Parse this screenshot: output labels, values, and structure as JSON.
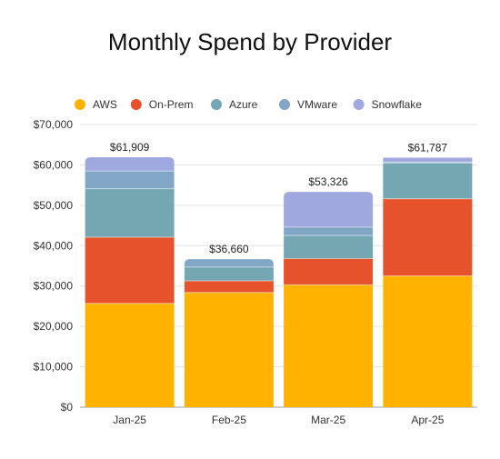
{
  "chart_data": {
    "type": "bar",
    "stacked": true,
    "title": "Monthly Spend by Provider",
    "xlabel": "",
    "ylabel": "",
    "categories": [
      "Jan-25",
      "Feb-25",
      "Mar-25",
      "Apr-25"
    ],
    "series": [
      {
        "name": "AWS",
        "color": "#FFB300",
        "values": [
          25700,
          28400,
          30300,
          32500
        ]
      },
      {
        "name": "On-Prem",
        "color": "#E5522C",
        "values": [
          16400,
          2900,
          6500,
          19100
        ]
      },
      {
        "name": "Azure",
        "color": "#74A7B2",
        "values": [
          12000,
          3400,
          5700,
          8900
        ]
      },
      {
        "name": "VMware",
        "color": "#82A6C5",
        "values": [
          4400,
          1960,
          2100,
          200
        ]
      },
      {
        "name": "Snowflake",
        "color": "#9FA8DF",
        "values": [
          3409,
          0,
          8726,
          1087
        ]
      }
    ],
    "totals_labels": [
      "$61,909",
      "$36,660",
      "$53,326",
      "$61,787"
    ],
    "ylim": [
      0,
      70000
    ],
    "yticks": [
      0,
      10000,
      20000,
      30000,
      40000,
      50000,
      60000,
      70000
    ],
    "ytick_labels": [
      "$0",
      "$10,000",
      "$20,000",
      "$30,000",
      "$40,000",
      "$50,000",
      "$60,000",
      "$70,000"
    ],
    "grid": true,
    "legend_position": "top"
  }
}
